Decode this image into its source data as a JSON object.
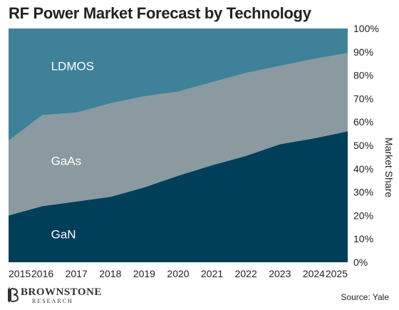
{
  "title": "RF Power Market Forecast by Technology",
  "source": "Source: Yale",
  "brand": {
    "name": "BROWNSTONE",
    "sub": "RESEARCH"
  },
  "chart_data": {
    "type": "area",
    "stacked": true,
    "x": [
      "2015",
      "2016",
      "2017",
      "2018",
      "2019",
      "2020",
      "2021",
      "2022",
      "2023",
      "2024",
      "2025"
    ],
    "x_labels": [
      "2015",
      "2016",
      "2017",
      "2018",
      "2019",
      "2020",
      "2021",
      "2022",
      "2023",
      "2024",
      "2025"
    ],
    "y_ticks": [
      "0%",
      "10%",
      "20%",
      "30%",
      "40%",
      "50%",
      "60%",
      "70%",
      "80%",
      "90%",
      "100%"
    ],
    "ylabel": "Market Share",
    "ylim": [
      0,
      100
    ],
    "series": [
      {
        "name": "GaN",
        "color": "#003f5a",
        "values": [
          20,
          24,
          26,
          28,
          32,
          37,
          41.5,
          45.5,
          50.5,
          53,
          56
        ]
      },
      {
        "name": "GaAs",
        "color": "#8a9aa0",
        "values": [
          32,
          39,
          38,
          40,
          39,
          36,
          35.5,
          35.5,
          33.5,
          34,
          33.5
        ]
      },
      {
        "name": "LDMOS",
        "color": "#3f8199",
        "values": [
          48,
          37,
          36,
          32,
          29,
          27,
          23,
          19,
          16,
          13,
          10.5
        ]
      }
    ]
  }
}
